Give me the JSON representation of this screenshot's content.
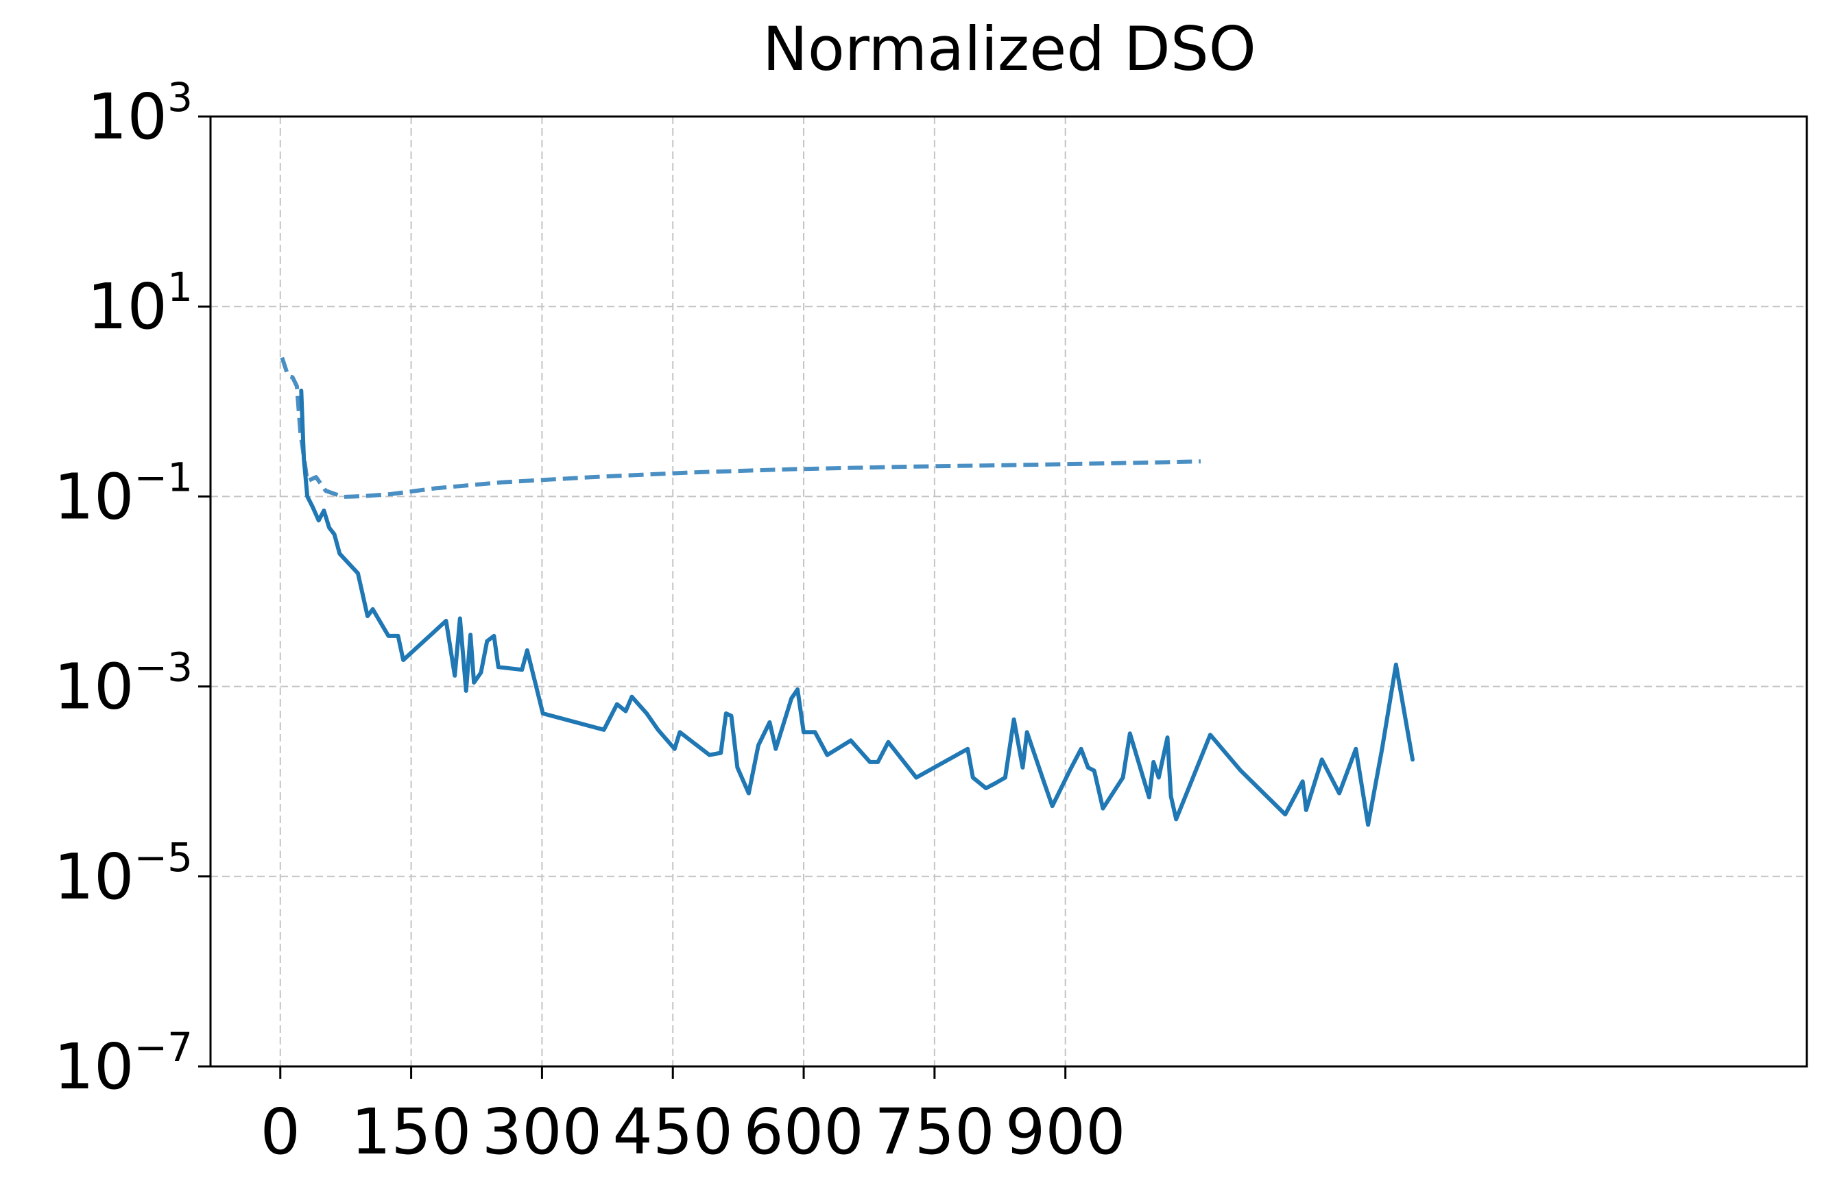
{
  "chart_data": {
    "type": "line",
    "title": "Normalized DSO",
    "xlabel": "",
    "ylabel": "",
    "x_scale": "linear",
    "y_scale": "log",
    "xlim": [
      -80,
      1750
    ],
    "ylim": [
      1e-07,
      1000
    ],
    "x_ticks": [
      0,
      150,
      300,
      450,
      600,
      750,
      900
    ],
    "x_tick_labels": [
      "0",
      "150",
      "300",
      "450",
      "600",
      "750",
      "900"
    ],
    "y_ticks": [
      {
        "value": 1000,
        "base": "10",
        "exp": "3"
      },
      {
        "value": 10,
        "base": "10",
        "exp": "1"
      },
      {
        "value": 0.1,
        "base": "10",
        "exp": "−1"
      },
      {
        "value": 0.001,
        "base": "10",
        "exp": "−3"
      },
      {
        "value": 1e-05,
        "base": "10",
        "exp": "−5"
      },
      {
        "value": 1e-07,
        "base": "10",
        "exp": "−7"
      }
    ],
    "grid": true,
    "legend": null,
    "series": [
      {
        "style": "dashed",
        "color": "#4a8fc3",
        "points": [
          [
            2,
            2.9
          ],
          [
            9,
            1.85
          ],
          [
            14,
            1.8
          ],
          [
            19,
            1.45
          ],
          [
            23,
            0.48
          ],
          [
            31,
            0.145
          ],
          [
            41,
            0.16
          ],
          [
            52,
            0.115
          ],
          [
            72,
            0.099
          ],
          [
            96,
            0.101
          ],
          [
            127,
            0.106
          ],
          [
            178,
            0.122
          ],
          [
            254,
            0.141
          ],
          [
            358,
            0.16
          ],
          [
            470,
            0.179
          ],
          [
            589,
            0.194
          ],
          [
            720,
            0.206
          ],
          [
            854,
            0.215
          ],
          [
            1000,
            0.228
          ],
          [
            1055,
            0.234
          ]
        ]
      },
      {
        "style": "solid",
        "color": "#1f77b4",
        "points": [
          [
            24,
            1.3
          ],
          [
            27,
            0.25
          ],
          [
            31,
            0.1
          ],
          [
            37,
            0.078
          ],
          [
            44,
            0.056
          ],
          [
            50,
            0.071
          ],
          [
            56,
            0.047
          ],
          [
            62,
            0.04
          ],
          [
            68,
            0.025
          ],
          [
            89,
            0.0155
          ],
          [
            100,
            0.0055
          ],
          [
            106,
            0.0065
          ],
          [
            124,
            0.0034
          ],
          [
            135,
            0.0034
          ],
          [
            141,
            0.0019
          ],
          [
            190,
            0.0049
          ],
          [
            200,
            0.0013
          ],
          [
            206,
            0.0052
          ],
          [
            213,
            0.0009
          ],
          [
            218,
            0.0035
          ],
          [
            222,
            0.0011
          ],
          [
            230,
            0.0014
          ],
          [
            237,
            0.003
          ],
          [
            245,
            0.0034
          ],
          [
            250,
            0.0016
          ],
          [
            277,
            0.0015
          ],
          [
            283,
            0.0024
          ],
          [
            301,
            0.00052
          ],
          [
            371,
            0.00035
          ],
          [
            386,
            0.00065
          ],
          [
            396,
            0.00055
          ],
          [
            403,
            0.00078
          ],
          [
            420,
            0.00052
          ],
          [
            433,
            0.00035
          ],
          [
            452,
            0.00022
          ],
          [
            458,
            0.00033
          ],
          [
            492,
            0.00019
          ],
          [
            505,
            0.0002
          ],
          [
            511,
            0.00052
          ],
          [
            517,
            0.00049
          ],
          [
            524,
            0.00014
          ],
          [
            537,
            7.5e-05
          ],
          [
            548,
            0.00024
          ],
          [
            561,
            0.00042
          ],
          [
            568,
            0.00022
          ],
          [
            586,
            0.00075
          ],
          [
            593,
            0.00093
          ],
          [
            600,
            0.00033
          ],
          [
            613,
            0.00033
          ],
          [
            627,
            0.00019
          ],
          [
            654,
            0.00027
          ],
          [
            676,
            0.00016
          ],
          [
            685,
            0.00016
          ],
          [
            697,
            0.00026
          ],
          [
            729,
            0.00011
          ],
          [
            788,
            0.00022
          ],
          [
            794,
            0.00011
          ],
          [
            809,
            8.5e-05
          ],
          [
            819,
            9.5e-05
          ],
          [
            831,
            0.00011
          ],
          [
            841,
            0.00045
          ],
          [
            851,
            0.00014
          ],
          [
            856,
            0.00033
          ],
          [
            876,
            9.5e-05
          ],
          [
            885,
            5.5e-05
          ],
          [
            905,
            0.00013
          ],
          [
            918,
            0.00022
          ],
          [
            926,
            0.00014
          ],
          [
            933,
            0.00013
          ],
          [
            943,
            5.2e-05
          ],
          [
            966,
            0.00011
          ],
          [
            974,
            0.00032
          ],
          [
            996,
            6.8e-05
          ],
          [
            1001,
            0.00016
          ],
          [
            1007,
            0.00011
          ],
          [
            1017,
            0.00029
          ],
          [
            1021,
            7e-05
          ],
          [
            1027,
            4e-05
          ],
          [
            1066,
            0.00031
          ],
          [
            1101,
            0.00013
          ],
          [
            1152,
            4.5e-05
          ],
          [
            1172,
            0.0001
          ],
          [
            1176,
            5e-05
          ],
          [
            1194,
            0.00017
          ],
          [
            1214,
            7.5e-05
          ],
          [
            1233,
            0.00022
          ],
          [
            1247,
            3.5e-05
          ],
          [
            1263,
            0.00022
          ],
          [
            1279,
            0.0017
          ],
          [
            1298,
            0.00017
          ]
        ]
      }
    ]
  }
}
